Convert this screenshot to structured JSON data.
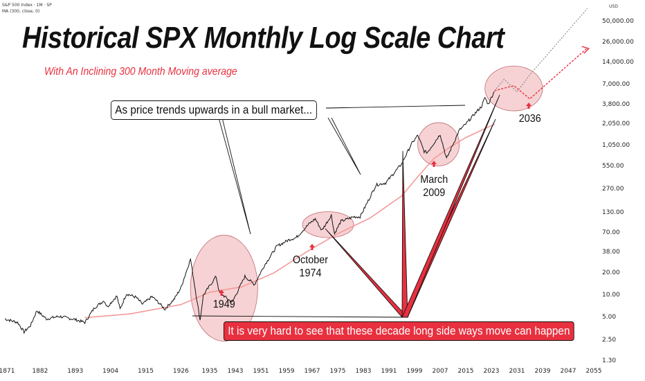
{
  "header": {
    "symbol_line": "S&P 500 Index · 1M · SP",
    "indicator_line": "MA (300, close, 0)"
  },
  "currency": "USD",
  "title": "Historical SPX Monthly Log Scale Chart",
  "subtitle": "With An Inclining 300 Month Moving average",
  "callouts": {
    "bull": "As price trends upwards in a bull market...",
    "sideways": "It is very hard to see that these decade long side ways move can happen"
  },
  "notes": {
    "n1949": "1949",
    "n1974": [
      "October",
      "1974"
    ],
    "n2009": [
      "March",
      "2009"
    ],
    "n2036": "2036"
  },
  "colors": {
    "price": "#111111",
    "moving_average": "#f39a9a",
    "ellipse_fill": "#f6d2d4",
    "ellipse_stroke": "#c06b72",
    "marker": "#e8303f",
    "projection_gray": "#7a7a7a",
    "projection_red": "#e8303f"
  },
  "chart_data": {
    "type": "line",
    "y_scale": "log",
    "y_ticks": [
      "50,000.00",
      "26,000.00",
      "14,000.00",
      "7,000.00",
      "3,800.00",
      "2,050.00",
      "1,050.00",
      "550.00",
      "270.00",
      "130.00",
      "70.00",
      "38.00",
      "20.00",
      "10.00",
      "5.00",
      "2.50",
      "1.30"
    ],
    "x_ticks": [
      "1871",
      "1882",
      "1893",
      "1904",
      "1915",
      "1926",
      "1935",
      "1943",
      "1951",
      "1959",
      "1967",
      "1975",
      "1983",
      "1991",
      "1999",
      "2007",
      "2015",
      "2023",
      "2031",
      "2039",
      "2047",
      "2055"
    ],
    "xlim": [
      1871,
      2055
    ],
    "ylim": [
      1.3,
      50000
    ],
    "series": [
      {
        "name": "S&P 500 Index",
        "x": [
          1871,
          1875,
          1877,
          1879,
          1881,
          1884,
          1888,
          1893,
          1896,
          1899,
          1902,
          1903,
          1906,
          1907,
          1909,
          1912,
          1914,
          1917,
          1919,
          1921,
          1924,
          1926,
          1929,
          1932,
          1933,
          1937,
          1938,
          1942,
          1946,
          1949,
          1952,
          1956,
          1960,
          1962,
          1966,
          1968,
          1970,
          1973,
          1974,
          1976,
          1980,
          1982,
          1987,
          1990,
          1995,
          1998,
          2000,
          2002,
          2003,
          2007,
          2009,
          2013,
          2015,
          2018,
          2020,
          2021,
          2022,
          2024
        ],
        "y": [
          4.8,
          4.3,
          3.2,
          3.9,
          6.2,
          4.8,
          5.2,
          4.7,
          4.3,
          6.8,
          8.5,
          7,
          9.8,
          6.5,
          10.5,
          9.4,
          7.6,
          9.6,
          8,
          6.5,
          9,
          12.6,
          31,
          4.6,
          10,
          18,
          11,
          8,
          18,
          14,
          25,
          46,
          57,
          60,
          92,
          108,
          75,
          120,
          68,
          100,
          115,
          115,
          310,
          330,
          600,
          1100,
          1450,
          880,
          850,
          1500,
          700,
          1700,
          2050,
          2900,
          3600,
          4700,
          3800,
          5800
        ]
      },
      {
        "name": "MA (300, close, 0)",
        "x": [
          1896,
          1910,
          1926,
          1935,
          1945,
          1955,
          1965,
          1975,
          1985,
          1995,
          2000,
          2005,
          2010,
          2015,
          2020,
          2024
        ],
        "y": [
          5,
          5.6,
          7.5,
          11,
          13,
          20,
          38,
          68,
          110,
          220,
          400,
          700,
          1000,
          1350,
          1700,
          2050
        ]
      }
    ],
    "projections": [
      {
        "color": "gray",
        "from": [
          2024,
          5800
        ],
        "to": [
          2053,
          75000
        ]
      },
      {
        "color": "red",
        "from": [
          2024,
          5800
        ],
        "to": [
          2053,
          22000
        ]
      }
    ]
  }
}
